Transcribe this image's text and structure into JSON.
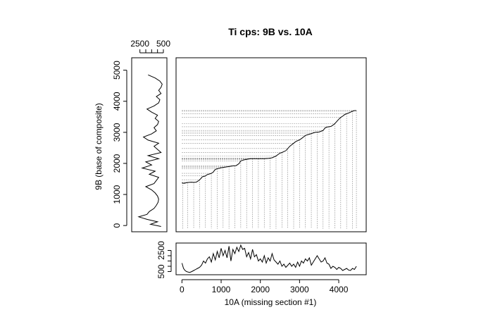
{
  "chart_data": [
    {
      "id": "main",
      "type": "line",
      "title": "Ti cps: 9B vs. 10A",
      "xlabel": "10A (missing section #1)",
      "ylabel": "9B (base of composite)",
      "xlim": [
        -150,
        4700
      ],
      "ylim": [
        -200,
        5400
      ],
      "xticks": [
        0,
        1000,
        2000,
        3000,
        4000
      ],
      "yticks": [
        0,
        1000,
        2000,
        3000,
        4000,
        5000
      ],
      "grid": false,
      "tie_points_x": [
        20,
        150,
        300,
        450,
        600,
        750,
        900,
        1050,
        1200,
        1350,
        1500,
        1650,
        1800,
        1950,
        2100,
        2250,
        2400,
        2550,
        2700,
        2850,
        3000,
        3150,
        3300,
        3450,
        3600,
        3750,
        3900,
        4050,
        4200,
        4350,
        4450
      ],
      "series": [
        {
          "x": [
            0,
            60,
            120,
            180,
            240,
            300,
            360,
            400,
            440,
            480,
            520,
            560,
            600,
            650,
            700,
            750,
            800,
            830,
            860,
            900,
            950,
            1000,
            1100,
            1200,
            1300,
            1380,
            1420,
            1460,
            1500,
            1600,
            1700,
            1750,
            1800,
            1900,
            2000,
            2100,
            2200,
            2300,
            2400,
            2500,
            2550,
            2600,
            2650,
            2700,
            2750,
            2800,
            2850,
            2900,
            3000,
            3050,
            3100,
            3150,
            3200,
            3300,
            3400,
            3500,
            3600,
            3650,
            3700,
            3750,
            3800,
            3850,
            3900,
            3950,
            4000,
            4050,
            4100,
            4150,
            4200,
            4250,
            4300,
            4350,
            4400,
            4450
          ],
          "y": [
            1370,
            1360,
            1380,
            1390,
            1395,
            1390,
            1395,
            1420,
            1460,
            1510,
            1570,
            1580,
            1600,
            1640,
            1660,
            1680,
            1720,
            1780,
            1810,
            1830,
            1840,
            1860,
            1880,
            1900,
            1920,
            1930,
            1960,
            2000,
            2080,
            2120,
            2140,
            2150,
            2150,
            2150,
            2150,
            2150,
            2160,
            2180,
            2240,
            2330,
            2350,
            2380,
            2410,
            2480,
            2550,
            2600,
            2650,
            2700,
            2760,
            2800,
            2850,
            2900,
            2920,
            2960,
            3000,
            3010,
            3060,
            3140,
            3170,
            3180,
            3190,
            3230,
            3280,
            3350,
            3420,
            3480,
            3520,
            3570,
            3600,
            3620,
            3650,
            3680,
            3700,
            3700
          ]
        }
      ]
    },
    {
      "id": "left-log",
      "type": "line",
      "orientation": "vertical",
      "x_axis_reversed": true,
      "xlim": [
        3200,
        200
      ],
      "ylim": [
        -200,
        5400
      ],
      "xticks_labeled": [
        2500,
        500
      ],
      "xticks_minor": [
        2000,
        1500,
        1000
      ],
      "yticks": [
        0,
        1000,
        2000,
        3000,
        4000,
        5000
      ],
      "series": [
        {
          "depth": [
            -30,
            40,
            120,
            200,
            280,
            360,
            450,
            550,
            650,
            750,
            850,
            950,
            1050,
            1150,
            1250,
            1350,
            1450,
            1550,
            1650,
            1750,
            1850,
            1950,
            2050,
            2150,
            2250,
            2350,
            2450,
            2550,
            2650,
            2750,
            2850,
            2950,
            3050,
            3150,
            3250,
            3350,
            3450,
            3550,
            3650,
            3750,
            3850,
            3950,
            4050,
            4150,
            4250,
            4350,
            4450,
            4550,
            4650,
            4750,
            4850
          ],
          "value": [
            700,
            1600,
            1000,
            1900,
            2600,
            1900,
            1700,
            1300,
            1100,
            950,
            900,
            1000,
            1200,
            1500,
            2000,
            1300,
            1100,
            900,
            1700,
            1200,
            2300,
            1500,
            2000,
            900,
            1800,
            700,
            1000,
            1300,
            900,
            1800,
            2200,
            1500,
            1100,
            1300,
            1000,
            900,
            1200,
            1000,
            1500,
            1900,
            1300,
            900,
            800,
            1100,
            700,
            900,
            700,
            600,
            800,
            1200,
            1800
          ]
        }
      ]
    },
    {
      "id": "bottom-log",
      "type": "line",
      "xlim": [
        -150,
        4700
      ],
      "ylim": [
        200,
        3200
      ],
      "yticks_labeled": [
        2500,
        500
      ],
      "yticks_minor": [
        2000,
        1500,
        1000
      ],
      "series": [
        {
          "x": [
            0,
            40,
            80,
            120,
            160,
            200,
            250,
            300,
            350,
            400,
            450,
            500,
            550,
            600,
            650,
            700,
            750,
            800,
            850,
            900,
            950,
            1000,
            1050,
            1100,
            1150,
            1200,
            1250,
            1300,
            1350,
            1400,
            1450,
            1500,
            1550,
            1600,
            1650,
            1700,
            1750,
            1800,
            1850,
            1900,
            1950,
            2000,
            2050,
            2100,
            2150,
            2200,
            2250,
            2300,
            2350,
            2400,
            2450,
            2500,
            2550,
            2600,
            2650,
            2700,
            2750,
            2800,
            2850,
            2900,
            2950,
            3000,
            3050,
            3100,
            3150,
            3200,
            3250,
            3300,
            3350,
            3400,
            3450,
            3500,
            3550,
            3600,
            3650,
            3700,
            3750,
            3800,
            3850,
            3900,
            3950,
            4000,
            4050,
            4100,
            4150,
            4200,
            4250,
            4300,
            4350,
            4400,
            4450
          ],
          "y": [
            1300,
            800,
            600,
            500,
            450,
            420,
            500,
            600,
            700,
            800,
            900,
            1100,
            1500,
            1300,
            1700,
            1900,
            1400,
            2200,
            1600,
            2400,
            1800,
            2700,
            2000,
            2500,
            1800,
            2900,
            1500,
            2600,
            2200,
            2800,
            2400,
            3000,
            2600,
            2700,
            1900,
            2300,
            1700,
            2600,
            1900,
            2100,
            1500,
            1700,
            1400,
            2000,
            1300,
            1800,
            1500,
            2200,
            1600,
            1400,
            1200,
            1500,
            1000,
            1200,
            900,
            1100,
            1300,
            1000,
            1200,
            900,
            1400,
            1000,
            1500,
            1300,
            1700,
            1500,
            1800,
            1100,
            1400,
            1700,
            2000,
            1700,
            1400,
            1500,
            1800,
            1300,
            1200,
            800,
            1000,
            900,
            700,
            900,
            800,
            600,
            700,
            800,
            650,
            600,
            800,
            700,
            1000
          ]
        }
      ]
    }
  ]
}
